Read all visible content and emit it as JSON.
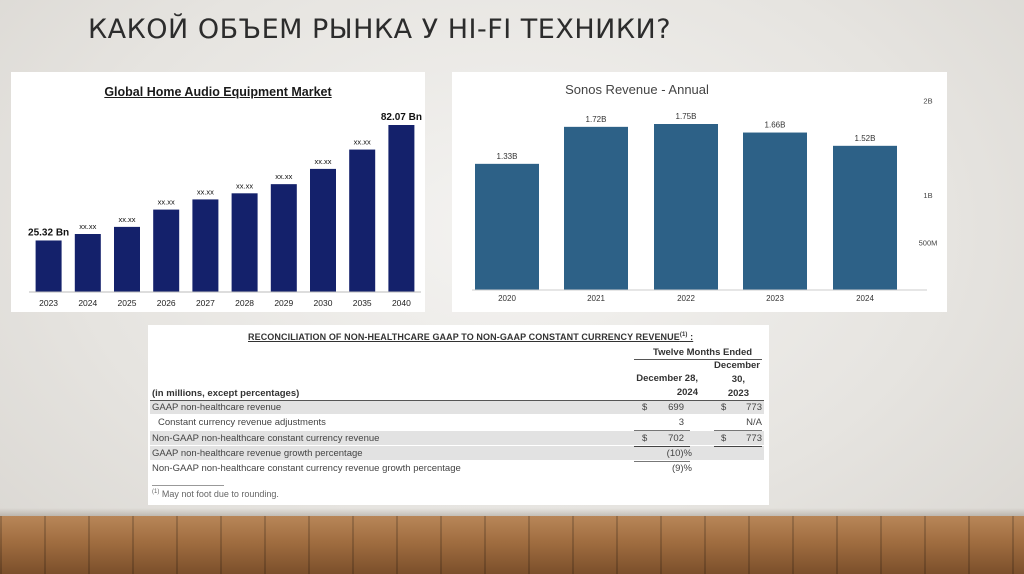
{
  "slide": {
    "title": "КАКОЙ ОБЪЕМ РЫНКА У HI-FI ТЕХНИКИ?"
  },
  "chart_data": [
    {
      "type": "bar",
      "title": "Global Home Audio Equipment Market",
      "categories": [
        "2023",
        "2024",
        "2025",
        "2026",
        "2027",
        "2028",
        "2029",
        "2030",
        "2035",
        "2040"
      ],
      "values": [
        25.32,
        28.5,
        32.0,
        40.5,
        45.5,
        48.5,
        53.0,
        60.5,
        70.0,
        82.07
      ],
      "data_labels": [
        "25.32 Bn",
        "xx.xx",
        "xx.xx",
        "xx.xx",
        "xx.xx",
        "xx.xx",
        "xx.xx",
        "xx.xx",
        "xx.xx",
        "82.07 Bn"
      ],
      "ylim": [
        0,
        85
      ],
      "color": "#14216b",
      "grid": false
    },
    {
      "type": "bar",
      "title": "Sonos Revenue - Annual",
      "categories": [
        "2020",
        "2021",
        "2022",
        "2023",
        "2024"
      ],
      "values": [
        1.33,
        1.72,
        1.75,
        1.66,
        1.52
      ],
      "data_labels": [
        "1.33B",
        "1.72B",
        "1.75B",
        "1.66B",
        "1.52B"
      ],
      "y_ticks": [
        {
          "value": 0.5,
          "label": "500M"
        },
        {
          "value": 1.0,
          "label": "1B"
        },
        {
          "value": 2.0,
          "label": "2B"
        }
      ],
      "y_axis_side": "right",
      "ylim": [
        0,
        2.3
      ],
      "color": "#2d6187",
      "grid": false
    }
  ],
  "table": {
    "title": "RECONCILIATION OF NON-HEALTHCARE GAAP TO NON-GAAP CONSTANT CURRENCY REVENUE",
    "title_sup": "(1)",
    "title_suffix": " :",
    "period_header": "Twelve Months Ended",
    "col1_header_line1": "December 28,",
    "col1_header_line2": "2024",
    "col2_header_line1": "December",
    "col2_header_line2": "30,",
    "col2_header_line3": "2023",
    "row_header": "(in millions, except percentages)",
    "rows": [
      {
        "label": "GAAP non-healthcare revenue",
        "c1_sym": "$",
        "c1": "699",
        "c2_sym": "$",
        "c2": "773"
      },
      {
        "label": "Constant currency revenue adjustments",
        "c1_sym": "",
        "c1": "3",
        "c2_sym": "",
        "c2": "N/A"
      },
      {
        "label": "Non-GAAP non-healthcare constant currency revenue",
        "c1_sym": "$",
        "c1": "702",
        "c2_sym": "$",
        "c2": "773"
      },
      {
        "label": "GAAP non-healthcare revenue growth percentage",
        "c1_sym": "",
        "c1": "(10)%",
        "c2_sym": "",
        "c2": ""
      },
      {
        "label": "Non-GAAP non-healthcare constant currency revenue growth percentage",
        "c1_sym": "",
        "c1": "(9)%",
        "c2_sym": "",
        "c2": ""
      }
    ],
    "footnote_sup": "(1)",
    "footnote": " May not foot due to rounding."
  }
}
